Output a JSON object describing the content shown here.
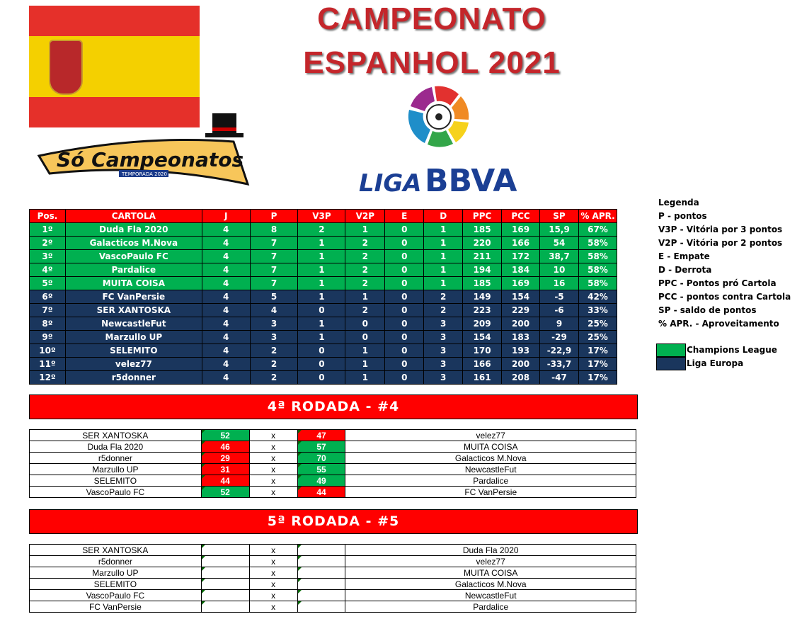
{
  "title": {
    "line1": "CAMPEONATO",
    "line2": "ESPANHOL 2021"
  },
  "logos": {
    "so_campeonatos": "Só Campeonatos",
    "temporada": "TEMPORADA 2020",
    "liga": "LIGA",
    "bbva": "BBVA"
  },
  "colors": {
    "champions": "#00b050",
    "europa": "#1a365d",
    "header": "#ff0000"
  },
  "standings": {
    "headers": [
      "Pos.",
      "CARTOLA",
      "J",
      "P",
      "V3P",
      "V2P",
      "E",
      "D",
      "PPC",
      "PCC",
      "SP",
      "% APR."
    ],
    "rows": [
      {
        "zone": "champions",
        "cells": [
          "1º",
          "Duda Fla 2020",
          "4",
          "8",
          "2",
          "1",
          "0",
          "1",
          "185",
          "169",
          "15,9",
          "67%"
        ]
      },
      {
        "zone": "champions",
        "cells": [
          "2º",
          "Galacticos M.Nova",
          "4",
          "7",
          "1",
          "2",
          "0",
          "1",
          "220",
          "166",
          "54",
          "58%"
        ]
      },
      {
        "zone": "champions",
        "cells": [
          "3º",
          "VascoPaulo FC",
          "4",
          "7",
          "1",
          "2",
          "0",
          "1",
          "211",
          "172",
          "38,7",
          "58%"
        ]
      },
      {
        "zone": "champions",
        "cells": [
          "4º",
          "Pardalice",
          "4",
          "7",
          "1",
          "2",
          "0",
          "1",
          "194",
          "184",
          "10",
          "58%"
        ]
      },
      {
        "zone": "champions",
        "cells": [
          "5º",
          "MUITA COISA",
          "4",
          "7",
          "1",
          "2",
          "0",
          "1",
          "185",
          "169",
          "16",
          "58%"
        ]
      },
      {
        "zone": "europa",
        "cells": [
          "6º",
          "FC VanPersie",
          "4",
          "5",
          "1",
          "1",
          "0",
          "2",
          "149",
          "154",
          "-5",
          "42%"
        ]
      },
      {
        "zone": "europa",
        "cells": [
          "7º",
          "SER XANTOSKA",
          "4",
          "4",
          "0",
          "2",
          "0",
          "2",
          "223",
          "229",
          "-6",
          "33%"
        ]
      },
      {
        "zone": "europa",
        "cells": [
          "8º",
          "NewcastleFut",
          "4",
          "3",
          "1",
          "0",
          "0",
          "3",
          "209",
          "200",
          "9",
          "25%"
        ]
      },
      {
        "zone": "europa",
        "cells": [
          "9º",
          "Marzullo UP",
          "4",
          "3",
          "1",
          "0",
          "0",
          "3",
          "154",
          "183",
          "-29",
          "25%"
        ]
      },
      {
        "zone": "europa",
        "cells": [
          "10º",
          "SELEMITO",
          "4",
          "2",
          "0",
          "1",
          "0",
          "3",
          "170",
          "193",
          "-22,9",
          "17%"
        ]
      },
      {
        "zone": "europa",
        "cells": [
          "11º",
          "velez77",
          "4",
          "2",
          "0",
          "1",
          "0",
          "3",
          "166",
          "200",
          "-33,7",
          "17%"
        ]
      },
      {
        "zone": "europa",
        "cells": [
          "12º",
          "r5donner",
          "4",
          "2",
          "0",
          "1",
          "0",
          "3",
          "161",
          "208",
          "-47",
          "17%"
        ]
      }
    ]
  },
  "legend": {
    "title": "Legenda",
    "items": [
      "P - pontos",
      "V3P - Vitória por 3 pontos",
      "V2P - Vitória por 2 pontos",
      "E - Empate",
      "D - Derrota",
      "PPC - Pontos pró Cartola",
      "PCC - pontos contra Cartola",
      "SP - saldo de pontos",
      "% APR. - Aproveitamento"
    ],
    "champions": "Champions League",
    "europa": "Liga Europa"
  },
  "rounds": [
    {
      "title": "4ª RODADA - #4",
      "matches": [
        {
          "home": "SER XANTOSKA",
          "hs": "52",
          "sep": "x",
          "as": "47",
          "away": "velez77"
        },
        {
          "home": "Duda Fla 2020",
          "hs": "46",
          "sep": "x",
          "as": "57",
          "away": "MUITA COISA"
        },
        {
          "home": "r5donner",
          "hs": "29",
          "sep": "x",
          "as": "70",
          "away": "Galacticos M.Nova"
        },
        {
          "home": "Marzullo UP",
          "hs": "31",
          "sep": "x",
          "as": "55",
          "away": "NewcastleFut"
        },
        {
          "home": "SELEMITO",
          "hs": "44",
          "sep": "x",
          "as": "49",
          "away": "Pardalice"
        },
        {
          "home": "VascoPaulo FC",
          "hs": "52",
          "sep": "x",
          "as": "44",
          "away": "FC VanPersie"
        }
      ]
    },
    {
      "title": "5ª RODADA - #5",
      "matches": [
        {
          "home": "SER XANTOSKA",
          "hs": "",
          "sep": "x",
          "as": "",
          "away": "Duda Fla 2020"
        },
        {
          "home": "r5donner",
          "hs": "",
          "sep": "x",
          "as": "",
          "away": "velez77"
        },
        {
          "home": "Marzullo UP",
          "hs": "",
          "sep": "x",
          "as": "",
          "away": "MUITA COISA"
        },
        {
          "home": "SELEMITO",
          "hs": "",
          "sep": "x",
          "as": "",
          "away": "Galacticos M.Nova"
        },
        {
          "home": "VascoPaulo FC",
          "hs": "",
          "sep": "x",
          "as": "",
          "away": "NewcastleFut"
        },
        {
          "home": "FC VanPersie",
          "hs": "",
          "sep": "x",
          "as": "",
          "away": "Pardalice"
        }
      ]
    }
  ]
}
